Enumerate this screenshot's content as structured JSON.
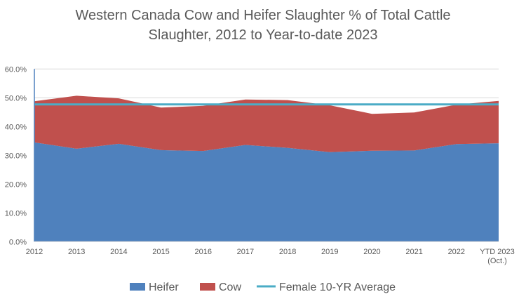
{
  "chart_data": {
    "type": "area",
    "stacked": true,
    "title_lines": [
      "Western Canada Cow and Heifer Slaughter % of Total Cattle",
      "Slaughter,  2012 to Year-to-date 2023"
    ],
    "xlabel": "",
    "ylabel": "",
    "categories": [
      [
        "2012"
      ],
      [
        "2013"
      ],
      [
        "2014"
      ],
      [
        "2015"
      ],
      [
        "2016"
      ],
      [
        "2017"
      ],
      [
        "2018"
      ],
      [
        "2019"
      ],
      [
        "2020"
      ],
      [
        "2021"
      ],
      [
        "2022"
      ],
      [
        "YTD 2023",
        "(Oct.)"
      ]
    ],
    "ylim": [
      0,
      60
    ],
    "yticks": [
      "0.0%",
      "10.0%",
      "20.0%",
      "30.0%",
      "40.0%",
      "50.0%",
      "60.0%"
    ],
    "grid": true,
    "legend_position": "bottom",
    "series": [
      {
        "name": "Heifer",
        "color": "#4f81bd",
        "values": [
          34.5,
          32.3,
          34.0,
          31.8,
          31.5,
          33.6,
          32.6,
          31.1,
          31.6,
          31.7,
          33.9,
          34.2
        ]
      },
      {
        "name": "Cow",
        "color": "#c0504d",
        "values": [
          14.3,
          18.4,
          15.8,
          14.8,
          15.7,
          15.8,
          16.6,
          16.3,
          12.8,
          13.2,
          13.7,
          14.7
        ]
      }
    ],
    "reference_line": {
      "name": "Female 10-YR Average",
      "color": "#4bacc6",
      "value": 47.7
    }
  }
}
